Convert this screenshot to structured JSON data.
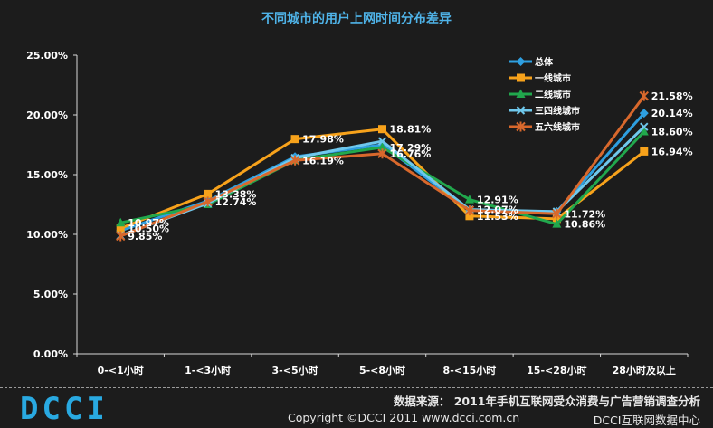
{
  "chart_data": {
    "type": "line",
    "title": "不同城市的用户上网时间分布差异",
    "categories": [
      "0-<1小时",
      "1-<3小时",
      "3-<5小时",
      "5-<8小时",
      "8-<15小时",
      "15-<28小时",
      "28小时及以上"
    ],
    "ylim": [
      0,
      25
    ],
    "yticks": [
      "0.00%",
      "5.00%",
      "10.00%",
      "15.00%",
      "20.00%",
      "25.00%"
    ],
    "grid": false,
    "legend_position": "top-right",
    "series": [
      {
        "name": "总体",
        "color": "#2e9fe0",
        "marker": "diamond",
        "values": [
          10.3,
          12.8,
          16.5,
          17.5,
          12.0,
          11.9,
          20.14
        ]
      },
      {
        "name": "一线城市",
        "color": "#f7a21b",
        "marker": "square",
        "values": [
          10.5,
          13.38,
          17.98,
          18.81,
          11.53,
          11.3,
          16.94
        ]
      },
      {
        "name": "二线城市",
        "color": "#21a84d",
        "marker": "triangle",
        "values": [
          10.97,
          12.5,
          16.2,
          17.29,
          12.91,
          10.86,
          18.6
        ]
      },
      {
        "name": "三四线城市",
        "color": "#6fc8ec",
        "marker": "x",
        "values": [
          9.9,
          12.6,
          16.4,
          17.8,
          12.07,
          11.9,
          19.0
        ]
      },
      {
        "name": "五六线城市",
        "color": "#d8682c",
        "marker": "star",
        "values": [
          9.85,
          12.74,
          16.19,
          16.76,
          12.0,
          11.72,
          21.58
        ]
      }
    ],
    "data_labels": [
      {
        "text": "10.97%",
        "cat": 0,
        "value": 10.97
      },
      {
        "text": "10.50%",
        "cat": 0,
        "value": 10.5
      },
      {
        "text": "9.85%",
        "cat": 0,
        "value": 9.85
      },
      {
        "text": "13.38%",
        "cat": 1,
        "value": 13.38
      },
      {
        "text": "12.74%",
        "cat": 1,
        "value": 12.74
      },
      {
        "text": "17.98%",
        "cat": 2,
        "value": 17.98
      },
      {
        "text": "16.19%",
        "cat": 2,
        "value": 16.19
      },
      {
        "text": "18.81%",
        "cat": 3,
        "value": 18.81
      },
      {
        "text": "17.29%",
        "cat": 3,
        "value": 17.29
      },
      {
        "text": "16.76%",
        "cat": 3,
        "value": 16.76
      },
      {
        "text": "12.91%",
        "cat": 4,
        "value": 12.91
      },
      {
        "text": "12.07%",
        "cat": 4,
        "value": 12.07
      },
      {
        "text": "11.53%",
        "cat": 4,
        "value": 11.53
      },
      {
        "text": "11.72%",
        "cat": 5,
        "value": 11.72
      },
      {
        "text": "10.86%",
        "cat": 5,
        "value": 10.86
      },
      {
        "text": "21.58%",
        "cat": 6,
        "value": 21.58
      },
      {
        "text": "20.14%",
        "cat": 6,
        "value": 20.14
      },
      {
        "text": "18.60%",
        "cat": 6,
        "value": 18.6
      },
      {
        "text": "16.94%",
        "cat": 6,
        "value": 16.94
      }
    ]
  },
  "footer": {
    "logo": "DCCI",
    "source": "数据来源： 2011年手机互联网受众消费与广告营销调查分析",
    "copyright": "Copyright ©DCCI 2011 www.dcci.com.cn",
    "org": "DCCI互联网数据中心"
  }
}
